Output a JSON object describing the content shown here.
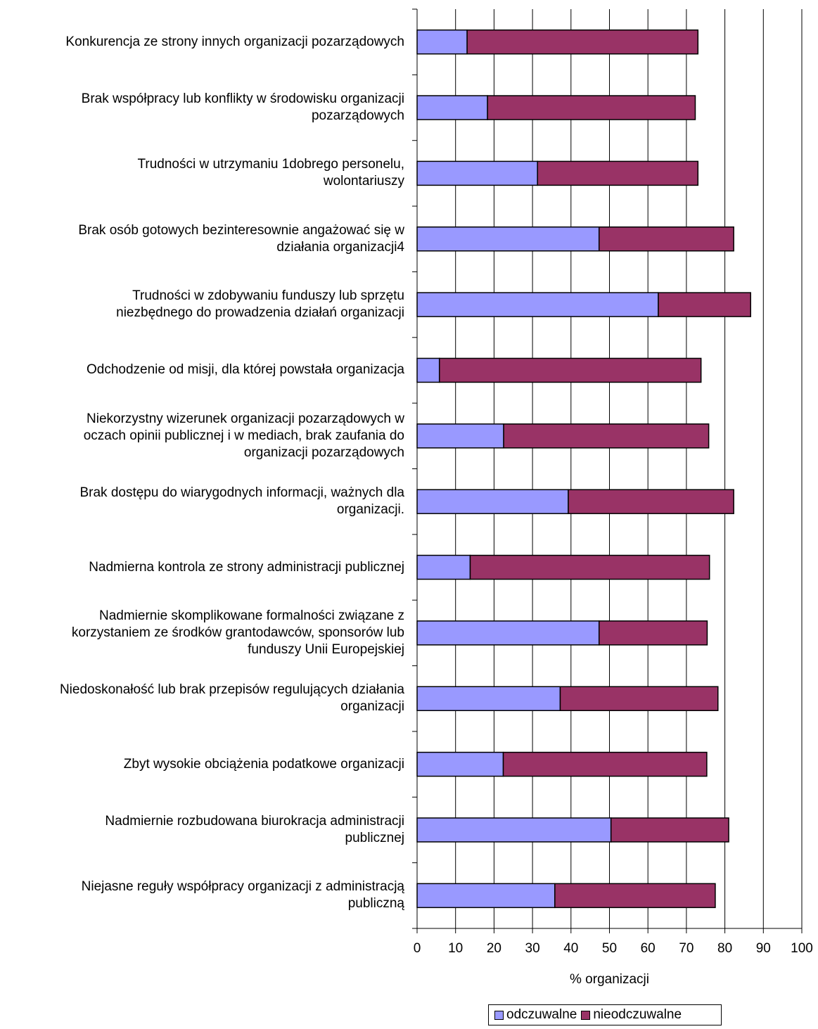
{
  "chart_data": {
    "type": "bar",
    "orientation": "horizontal",
    "stacked": true,
    "categories": [
      "Konkurencja ze strony innych organizacji pozarządowych",
      "Brak współpracy lub konflikty w środowisku organizacji pozarządowych",
      "Trudności w utrzymaniu 1dobrego personelu, wolontariuszy",
      "Brak osób gotowych bezinteresownie angażować się w działania organizacji4",
      "Trudności w zdobywaniu funduszy lub sprzętu niezbędnego do prowadzenia działań organizacji",
      "Odchodzenie od misji, dla której powstała organizacja",
      "Niekorzystny wizerunek organizacji pozarządowych w oczach opinii publicznej i w mediach, brak zaufania do organizacji pozarządowych",
      "Brak dostępu do wiarygodnych informacji, ważnych dla organizacji.",
      "Nadmierna kontrola ze strony administracji publicznej",
      "Nadmiernie skomplikowane formalności związane z korzystaniem ze środków grantodawców, sponsorów lub funduszy Unii Europejskiej",
      "Niedoskonałość lub brak przepisów regulujących działania organizacji",
      "Zbyt wysokie obciążenia podatkowe organizacji",
      "Nadmiernie rozbudowana biurokracja administracji publicznej",
      "Niejasne reguły współpracy organizacji z administracją publiczną"
    ],
    "category_lines": [
      [
        "Konkurencja ze strony innych organizacji pozarządowych"
      ],
      [
        "Brak współpracy lub konflikty w środowisku organizacji",
        "pozarządowych"
      ],
      [
        "Trudności w utrzymaniu 1dobrego personelu,",
        "wolontariuszy"
      ],
      [
        "Brak osób gotowych bezinteresownie angażować się w",
        "działania organizacji4"
      ],
      [
        "Trudności w zdobywaniu funduszy lub sprzętu",
        "niezbędnego do prowadzenia działań organizacji"
      ],
      [
        "Odchodzenie od misji, dla której powstała organizacja"
      ],
      [
        "Niekorzystny wizerunek organizacji pozarządowych w",
        "oczach opinii publicznej i w mediach, brak zaufania do",
        "organizacji pozarządowych"
      ],
      [
        "Brak dostępu do wiarygodnych informacji, ważnych dla",
        "organizacji."
      ],
      [
        "Nadmierna kontrola ze strony administracji publicznej"
      ],
      [
        "Nadmiernie skomplikowane formalności związane z",
        "korzystaniem ze środków grantodawców, sponsorów lub",
        "funduszy Unii Europejskiej"
      ],
      [
        "Niedoskonałość lub brak przepisów regulujących działania",
        "organizacji"
      ],
      [
        "Zbyt wysokie obciążenia podatkowe organizacji"
      ],
      [
        "Nadmiernie rozbudowana biurokracja administracji",
        "publicznej"
      ],
      [
        "Niejasne reguły współpracy organizacji z administracją",
        "publiczną"
      ]
    ],
    "series": [
      {
        "name": "odczuwalne",
        "color": "#9999ff",
        "values": [
          13,
          18.3,
          31.3,
          47.3,
          62.7,
          5.8,
          22.5,
          39.3,
          13.8,
          47.3,
          37.2,
          22.4,
          50.4,
          35.8
        ]
      },
      {
        "name": "nieodczuwalne",
        "color": "#993366",
        "values": [
          60,
          54,
          41.7,
          35,
          24,
          68,
          53.3,
          43,
          62.2,
          28.1,
          41,
          52.9,
          30.6,
          41.7
        ]
      }
    ],
    "xlabel": "% organizacji",
    "xlim": [
      0,
      100
    ],
    "xticks": [
      "0",
      "10",
      "20",
      "30",
      "40",
      "50",
      "60",
      "70",
      "80",
      "90",
      "100"
    ],
    "grid": true,
    "legend_position": "bottom"
  }
}
